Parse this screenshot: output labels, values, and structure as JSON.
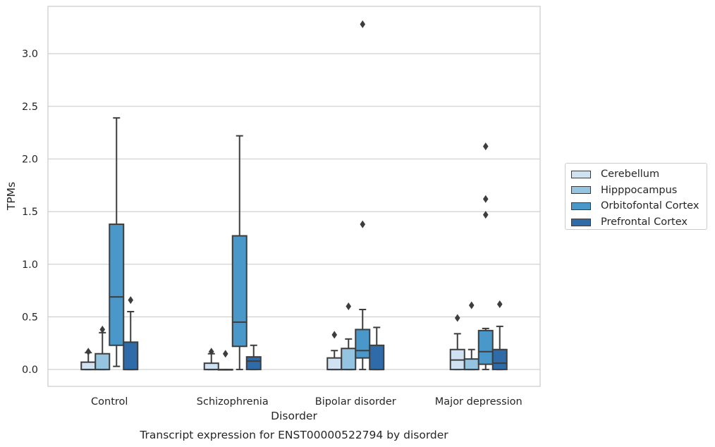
{
  "chart_data": {
    "type": "boxplot",
    "caption": "Transcript expression for ENST00000522794 by disorder",
    "xlabel": "Disorder",
    "ylabel": "TPMs",
    "ylim": [
      -0.16,
      3.45
    ],
    "yticks": [
      0.0,
      0.5,
      1.0,
      1.5,
      2.0,
      2.5,
      3.0
    ],
    "ytick_labels": [
      "0.0",
      "0.5",
      "1.0",
      "1.5",
      "2.0",
      "2.5",
      "3.0"
    ],
    "grid": "horizontal",
    "legend_position": "outside-right",
    "categories": [
      "Control",
      "Schizophrenia",
      "Bipolar disorder",
      "Major depression"
    ],
    "series": [
      {
        "name": "Cerebellum",
        "color": "#d0e1f2",
        "boxes": [
          {
            "whisker_low": 0.0,
            "q1": 0.0,
            "median": 0.0,
            "q3": 0.07,
            "whisker_high": 0.16,
            "outliers": [
              0.17
            ]
          },
          {
            "whisker_low": 0.0,
            "q1": 0.0,
            "median": 0.0,
            "q3": 0.06,
            "whisker_high": 0.15,
            "outliers": [
              0.17
            ]
          },
          {
            "whisker_low": 0.0,
            "q1": 0.0,
            "median": 0.0,
            "q3": 0.11,
            "whisker_high": 0.18,
            "outliers": [
              0.33
            ]
          },
          {
            "whisker_low": 0.0,
            "q1": 0.0,
            "median": 0.09,
            "q3": 0.19,
            "whisker_high": 0.34,
            "outliers": [
              0.49
            ]
          }
        ]
      },
      {
        "name": "Hipppocampus",
        "color": "#94c4df",
        "boxes": [
          {
            "whisker_low": 0.0,
            "q1": 0.0,
            "median": 0.0,
            "q3": 0.15,
            "whisker_high": 0.35,
            "outliers": [
              0.38
            ]
          },
          {
            "whisker_low": 0.0,
            "q1": 0.0,
            "median": 0.0,
            "q3": 0.0,
            "whisker_high": 0.0,
            "outliers": [
              0.15
            ]
          },
          {
            "whisker_low": 0.0,
            "q1": 0.0,
            "median": 0.0,
            "q3": 0.2,
            "whisker_high": 0.29,
            "outliers": [
              0.6
            ]
          },
          {
            "whisker_low": 0.0,
            "q1": 0.0,
            "median": 0.0,
            "q3": 0.1,
            "whisker_high": 0.19,
            "outliers": [
              0.61
            ]
          }
        ]
      },
      {
        "name": "Orbitofontal Cortex",
        "color": "#4a98c9",
        "boxes": [
          {
            "whisker_low": 0.03,
            "q1": 0.23,
            "median": 0.69,
            "q3": 1.38,
            "whisker_high": 2.39,
            "outliers": []
          },
          {
            "whisker_low": 0.0,
            "q1": 0.22,
            "median": 0.45,
            "q3": 1.27,
            "whisker_high": 2.22,
            "outliers": []
          },
          {
            "whisker_low": 0.0,
            "q1": 0.11,
            "median": 0.18,
            "q3": 0.38,
            "whisker_high": 0.57,
            "outliers": [
              1.38,
              3.28
            ]
          },
          {
            "whisker_low": 0.0,
            "q1": 0.05,
            "median": 0.17,
            "q3": 0.37,
            "whisker_high": 0.39,
            "outliers": [
              1.47,
              1.62,
              2.12
            ]
          }
        ]
      },
      {
        "name": "Prefrontal Cortex",
        "color": "#2e6ba8",
        "boxes": [
          {
            "whisker_low": 0.0,
            "q1": 0.0,
            "median": 0.0,
            "q3": 0.26,
            "whisker_high": 0.55,
            "outliers": [
              0.66
            ]
          },
          {
            "whisker_low": 0.0,
            "q1": 0.0,
            "median": 0.08,
            "q3": 0.12,
            "whisker_high": 0.23,
            "outliers": []
          },
          {
            "whisker_low": 0.0,
            "q1": 0.0,
            "median": 0.0,
            "q3": 0.23,
            "whisker_high": 0.4,
            "outliers": []
          },
          {
            "whisker_low": 0.0,
            "q1": 0.0,
            "median": 0.06,
            "q3": 0.19,
            "whisker_high": 0.41,
            "outliers": [
              0.62
            ]
          }
        ]
      }
    ]
  }
}
